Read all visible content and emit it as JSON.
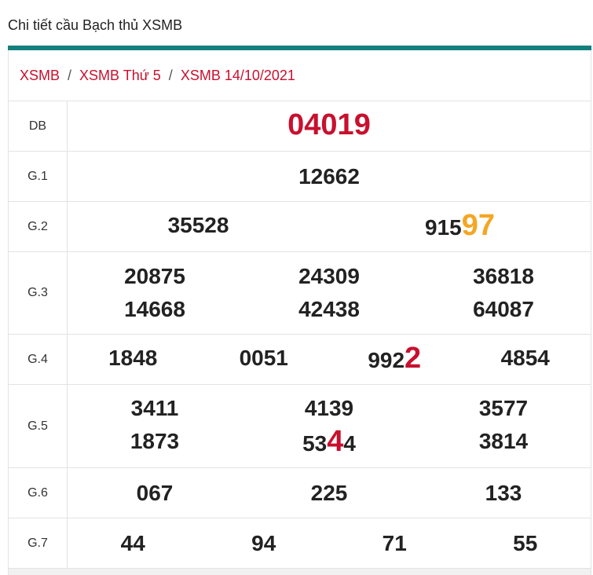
{
  "header": {
    "title": "Chi tiết cầu Bạch thủ XSMB"
  },
  "breadcrumb": {
    "separator": "/",
    "items": [
      "XSMB",
      "XSMB Thứ 5",
      "XSMB 14/10/2021"
    ]
  },
  "table": {
    "rows": [
      {
        "label": "DB",
        "numbers": [
          [
            {
              "text": "04019",
              "color": "#c8102e"
            }
          ]
        ]
      },
      {
        "label": "G.1",
        "numbers": [
          [
            {
              "text": "12662"
            }
          ]
        ]
      },
      {
        "label": "G.2",
        "numbers": [
          [
            {
              "text": "35528"
            }
          ],
          [
            {
              "text": "915"
            },
            {
              "text": "97",
              "color": "#f5a623"
            }
          ]
        ]
      },
      {
        "label": "G.3",
        "numbers": [
          [
            {
              "text": "20875"
            }
          ],
          [
            {
              "text": "24309"
            }
          ],
          [
            {
              "text": "36818"
            }
          ],
          [
            {
              "text": "14668"
            }
          ],
          [
            {
              "text": "42438"
            }
          ],
          [
            {
              "text": "64087"
            }
          ]
        ]
      },
      {
        "label": "G.4",
        "numbers": [
          [
            {
              "text": "1848"
            }
          ],
          [
            {
              "text": "0051"
            }
          ],
          [
            {
              "text": "992"
            },
            {
              "text": "2",
              "color": "#c8102e"
            }
          ],
          [
            {
              "text": "4854"
            }
          ]
        ]
      },
      {
        "label": "G.5",
        "numbers": [
          [
            {
              "text": "3411"
            }
          ],
          [
            {
              "text": "4139"
            }
          ],
          [
            {
              "text": "3577"
            }
          ],
          [
            {
              "text": "1873"
            }
          ],
          [
            {
              "text": "53"
            },
            {
              "text": "4",
              "color": "#c8102e"
            },
            {
              "text": "4"
            }
          ],
          [
            {
              "text": "3814"
            }
          ]
        ]
      },
      {
        "label": "G.6",
        "numbers": [
          [
            {
              "text": "067"
            }
          ],
          [
            {
              "text": "225"
            }
          ],
          [
            {
              "text": "133"
            }
          ]
        ]
      },
      {
        "label": "G.7",
        "numbers": [
          [
            {
              "text": "44"
            }
          ],
          [
            {
              "text": "94"
            }
          ],
          [
            {
              "text": "71"
            }
          ],
          [
            {
              "text": "55"
            }
          ]
        ]
      }
    ]
  }
}
